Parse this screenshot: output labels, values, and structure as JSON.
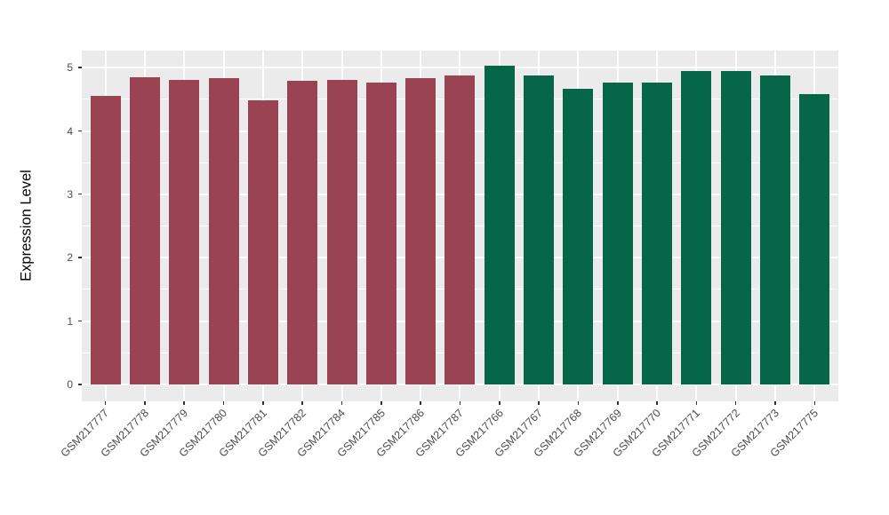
{
  "chart_data": {
    "type": "bar",
    "title": "",
    "xlabel": "",
    "ylabel": "Expression Level",
    "categories": [
      "GSM217777",
      "GSM217778",
      "GSM217779",
      "GSM217780",
      "GSM217781",
      "GSM217782",
      "GSM217784",
      "GSM217785",
      "GSM217786",
      "GSM217787",
      "GSM217766",
      "GSM217767",
      "GSM217768",
      "GSM217769",
      "GSM217770",
      "GSM217771",
      "GSM217772",
      "GSM217773",
      "GSM217775"
    ],
    "values": [
      4.55,
      4.85,
      4.8,
      4.83,
      4.49,
      4.79,
      4.8,
      4.76,
      4.83,
      4.88,
      5.03,
      4.87,
      4.66,
      4.76,
      4.76,
      4.95,
      4.94,
      4.87,
      4.58
    ],
    "colors": [
      "#9A4453",
      "#9A4453",
      "#9A4453",
      "#9A4453",
      "#9A4453",
      "#9A4453",
      "#9A4453",
      "#9A4453",
      "#9A4453",
      "#9A4453",
      "#066648",
      "#066648",
      "#066648",
      "#066648",
      "#066648",
      "#066648",
      "#066648",
      "#066648",
      "#066648"
    ],
    "group_colors": {
      "group_1": "#9A4453",
      "group_2": "#066648"
    },
    "yticks": [
      0,
      1,
      2,
      3,
      4,
      5
    ],
    "ytick_minor": [
      0.5,
      1.5,
      2.5,
      3.5,
      4.5
    ],
    "ylim": [
      -0.27,
      5.27
    ],
    "legend_position": "none",
    "grid": "on",
    "panel_bg": "#EBEBEB",
    "grid_color": "#FFFFFF",
    "tick_label_color": "#4D4D4D"
  }
}
